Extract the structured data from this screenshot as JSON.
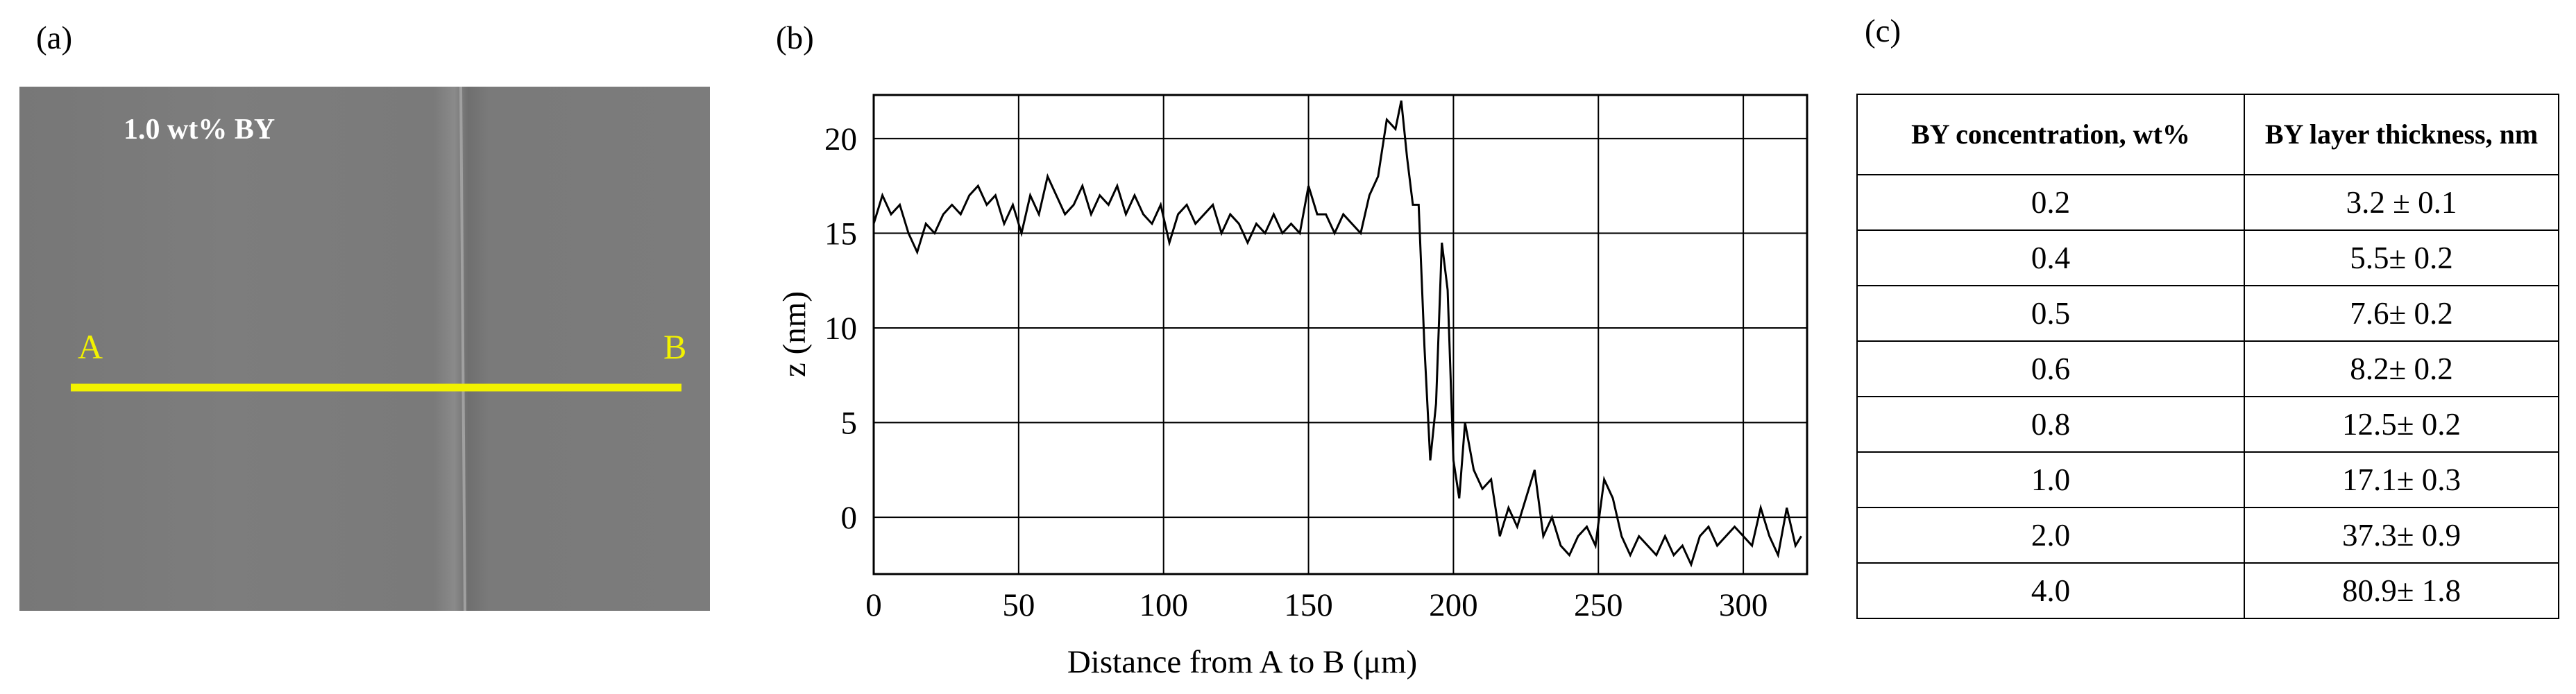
{
  "panels": {
    "a": {
      "label": "(a)",
      "caption": "1.0 wt% BY",
      "point_a": "A",
      "point_b": "B"
    },
    "b": {
      "label": "(b)"
    },
    "c": {
      "label": "(c)"
    }
  },
  "chart_data": {
    "type": "line",
    "x_label": "Distance from A to B (μm)",
    "y_label": "z (nm)",
    "x": [
      0,
      3,
      6,
      9,
      12,
      15,
      18,
      21,
      24,
      27,
      30,
      33,
      36,
      39,
      42,
      45,
      48,
      51,
      54,
      57,
      60,
      63,
      66,
      69,
      72,
      75,
      78,
      81,
      84,
      87,
      90,
      93,
      96,
      99,
      102,
      105,
      108,
      111,
      114,
      117,
      120,
      123,
      126,
      129,
      132,
      135,
      138,
      141,
      144,
      147,
      150,
      153,
      156,
      159,
      162,
      165,
      168,
      171,
      174,
      177,
      180,
      182,
      184,
      186,
      188,
      190,
      192,
      194,
      196,
      198,
      200,
      202,
      204,
      207,
      210,
      213,
      216,
      219,
      222,
      225,
      228,
      231,
      234,
      237,
      240,
      243,
      246,
      249,
      252,
      255,
      258,
      261,
      264,
      267,
      270,
      273,
      276,
      279,
      282,
      285,
      288,
      291,
      294,
      297,
      300,
      303,
      306,
      309,
      312,
      315,
      318,
      320
    ],
    "values": [
      15.5,
      17,
      16,
      16.5,
      15,
      14,
      15.5,
      15,
      16,
      16.5,
      16,
      17,
      17.5,
      16.5,
      17,
      15.5,
      16.5,
      15,
      17,
      16,
      18,
      17,
      16,
      16.5,
      17.5,
      16,
      17,
      16.5,
      17.5,
      16,
      17,
      16,
      15.5,
      16.5,
      14.5,
      16,
      16.5,
      15.5,
      16,
      16.5,
      15,
      16,
      15.5,
      14.5,
      15.5,
      15,
      16,
      15,
      15.5,
      15,
      17.5,
      16,
      16,
      15,
      16,
      15.5,
      15,
      17,
      18,
      21,
      20.5,
      22,
      19,
      16.5,
      16.5,
      9,
      3,
      6,
      14.5,
      12,
      3,
      1,
      5,
      2.5,
      1.5,
      2,
      -1,
      0.5,
      -0.5,
      1,
      2.5,
      -1,
      0,
      -1.5,
      -2,
      -1,
      -0.5,
      -1.5,
      2,
      1,
      -1,
      -2,
      -1,
      -1.5,
      -2,
      -1,
      -2,
      -1.5,
      -2.5,
      -1,
      -0.5,
      -1.5,
      -1,
      -0.5,
      -1,
      -1.5,
      0.5,
      -1,
      -2,
      0.5,
      -1.5,
      -1
    ],
    "color": "#000000",
    "xlim": [
      0,
      322
    ],
    "xticks": [
      0,
      50,
      100,
      150,
      200,
      250,
      300
    ],
    "ylim": [
      -3,
      22.3
    ],
    "yticks": [
      0,
      5,
      10,
      15,
      20
    ],
    "grid": true
  },
  "table": {
    "header": [
      "BY concentration, wt%",
      "BY layer thickness, nm"
    ],
    "rows": [
      [
        "0.2",
        "3.2 ± 0.1"
      ],
      [
        "0.4",
        "5.5± 0.2"
      ],
      [
        "0.5",
        "7.6± 0.2"
      ],
      [
        "0.6",
        "8.2± 0.2"
      ],
      [
        "0.8",
        "12.5± 0.2"
      ],
      [
        "1.0",
        "17.1± 0.3"
      ],
      [
        "2.0",
        "37.3± 0.9"
      ],
      [
        "4.0",
        "80.9± 1.8"
      ]
    ]
  }
}
